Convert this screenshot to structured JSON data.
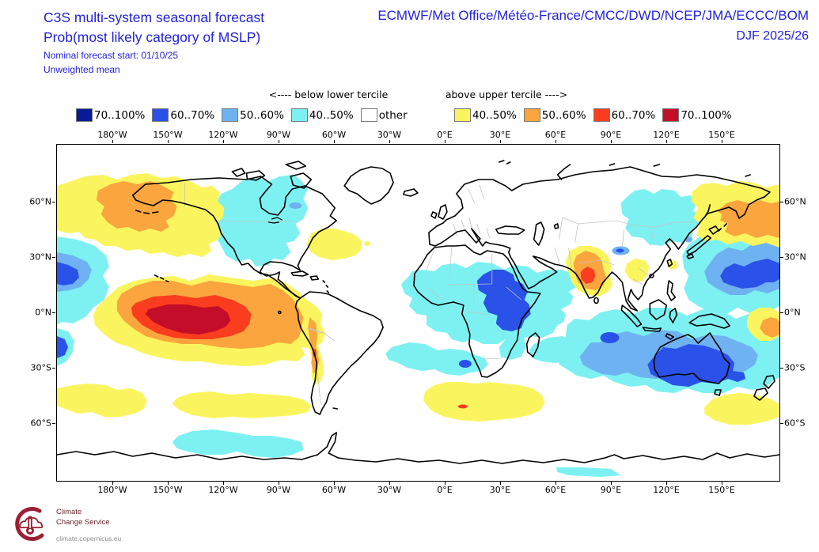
{
  "header": {
    "title_line1": "C3S multi-system seasonal forecast",
    "title_line2": "Prob(most likely category of MSLP)",
    "subtitle_line1": "Nominal forecast start: 01/10/25",
    "subtitle_line2": "Unweighted mean",
    "models": "ECMWF/Met Office/Météo-France/CMCC/DWD/NCEP/JMA/ECCC/BOM",
    "season": "DJF 2025/26"
  },
  "legend": {
    "below_header": "<---- below lower tercile",
    "above_header": "above upper tercile ---->",
    "below_items": [
      {
        "label": "70..100%",
        "color": "#0a1a96"
      },
      {
        "label": "60..70%",
        "color": "#2a52e8"
      },
      {
        "label": "50..60%",
        "color": "#6fb2f2"
      },
      {
        "label": "40..50%",
        "color": "#7df1f1"
      },
      {
        "label": "other",
        "color": "#ffffff"
      }
    ],
    "above_items": [
      {
        "label": "40..50%",
        "color": "#faf55e"
      },
      {
        "label": "50..60%",
        "color": "#faa53e"
      },
      {
        "label": "60..70%",
        "color": "#fa3d1e"
      },
      {
        "label": "70..100%",
        "color": "#c40d28"
      }
    ]
  },
  "map": {
    "lon_labels": [
      "180°W",
      "150°W",
      "120°W",
      "90°W",
      "60°W",
      "30°W",
      "0°E",
      "30°E",
      "60°E",
      "90°E",
      "120°E",
      "150°E"
    ],
    "lat_labels": [
      "60°N",
      "30°N",
      "0°N",
      "30°S",
      "60°S"
    ],
    "map_features": [
      {
        "area": "North Pacific / Alaska / Bering Sea",
        "category": "above upper tercile",
        "probability": "50..60%"
      },
      {
        "area": "Equatorial central-east Pacific (El Niño region)",
        "category": "above upper tercile",
        "probability": "70..100%"
      },
      {
        "area": "Peru-Chile coastal strip",
        "category": "above upper tercile",
        "probability": "60..70%"
      },
      {
        "area": "Western North Atlantic (~35°N)",
        "category": "above upper tercile",
        "probability": "40..50%"
      },
      {
        "area": "India",
        "category": "above upper tercile",
        "probability": "60..70%"
      },
      {
        "area": "Southwest Pacific near date line",
        "category": "above upper tercile",
        "probability": "50..60%"
      },
      {
        "area": "Southern Ocean south of Africa",
        "category": "above upper tercile",
        "probability": "40..50%"
      },
      {
        "area": "Southern Ocean southeast of New Zealand",
        "category": "above upper tercile",
        "probability": "40..50%"
      },
      {
        "area": "Canada / western North America",
        "category": "below lower tercile",
        "probability": "40..50%"
      },
      {
        "area": "North Africa with Sudan-Ethiopia core",
        "category": "below lower tercile",
        "probability": "50..60%"
      },
      {
        "area": "Subtropical west Pacific (~20°N)",
        "category": "below lower tercile",
        "probability": "60..70%"
      },
      {
        "area": "Australia and surrounding ocean",
        "category": "below lower tercile",
        "probability": "60..70%"
      },
      {
        "area": "Northeast Asia",
        "category": "below lower tercile",
        "probability": "40..50%"
      },
      {
        "area": "South Atlantic band southwest of South Africa",
        "category": "below lower tercile",
        "probability": "50..60%"
      },
      {
        "area": "Southern Ocean South Pacific (~60°S)",
        "category": "below lower tercile",
        "probability": "40..50%"
      }
    ]
  },
  "footer": {
    "logo_line1": "Climate",
    "logo_line2": "Change Service",
    "url": "climate.copernicus.eu"
  },
  "colors": {
    "title_blue": "#2222dd",
    "coastline": "#000000",
    "country_border": "#c4c4c4",
    "logo_red": "#9c2033"
  }
}
